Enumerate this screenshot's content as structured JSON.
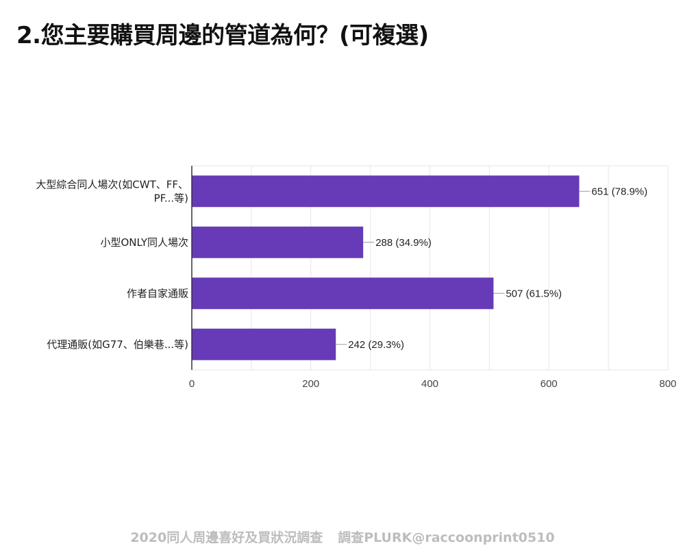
{
  "title": "2.您主要購買周邊的管道為何？(可複選)",
  "footer": {
    "survey_title": "2020同人周邊喜好及買狀況調查",
    "survey_by": "調查PLURK@raccoonprint0510"
  },
  "colors": {
    "bar": "#673ab7",
    "grid": "#e6e6e6",
    "axis": "#333333",
    "connector": "#999999"
  },
  "chart_data": {
    "type": "bar",
    "orientation": "horizontal",
    "categories": [
      [
        "大型綜合同人場次(如CWT、FF、",
        "PF...等)"
      ],
      [
        "小型ONLY同人場次"
      ],
      [
        "作者自家通販"
      ],
      [
        "代理通販(如G77、伯樂巷...等)"
      ]
    ],
    "values": [
      651,
      288,
      507,
      242
    ],
    "value_labels": [
      "651 (78.9%)",
      "288 (34.9%)",
      "507 (61.5%)",
      "242 (29.3%)"
    ],
    "x_ticks": [
      0,
      200,
      400,
      600,
      800
    ],
    "xlim": [
      0,
      800
    ],
    "grid": true,
    "legend": "none"
  }
}
